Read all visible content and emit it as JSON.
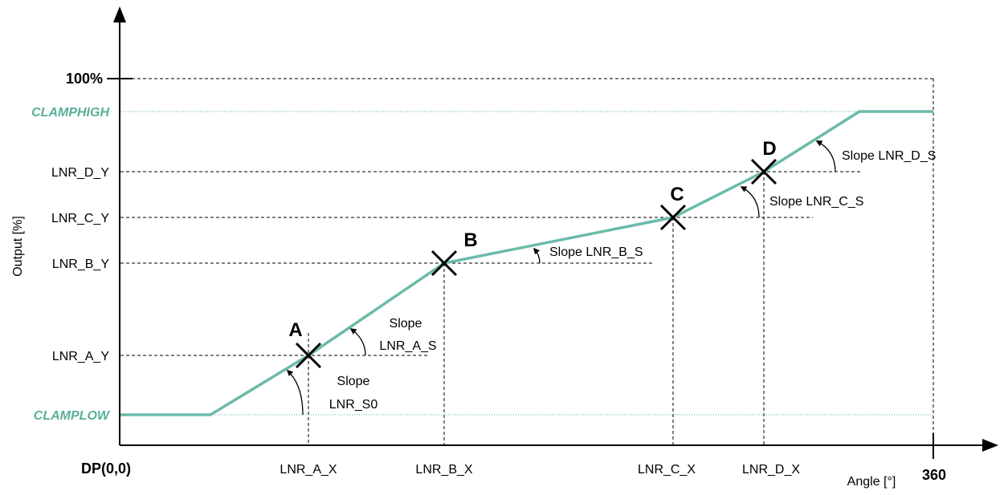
{
  "axes": {
    "y_title": "Output [%]",
    "x_title": "Angle [°]",
    "origin_label": "DP(0,0)",
    "x_end_label": "360",
    "y_top_label": "100%"
  },
  "clamps": {
    "high": "CLAMPHIGH",
    "low": "CLAMPLOW",
    "color": "#5aae9b"
  },
  "y_labels": {
    "d": "LNR_D_Y",
    "c": "LNR_C_Y",
    "b": "LNR_B_Y",
    "a": "LNR_A_Y"
  },
  "x_labels": {
    "a": "LNR_A_X",
    "b": "LNR_B_X",
    "c": "LNR_C_X",
    "d": "LNR_D_X"
  },
  "points": {
    "a": "A",
    "b": "B",
    "c": "C",
    "d": "D"
  },
  "slopes": {
    "s0_line1": "Slope",
    "s0_line2": "LNR_S0",
    "a_line1": "Slope",
    "a_line2": "LNR_A_S",
    "b": "Slope LNR_B_S",
    "c": "Slope LNR_C_S",
    "d": "Slope LNR_D_S"
  },
  "curve_color": "#6cbaa9"
}
